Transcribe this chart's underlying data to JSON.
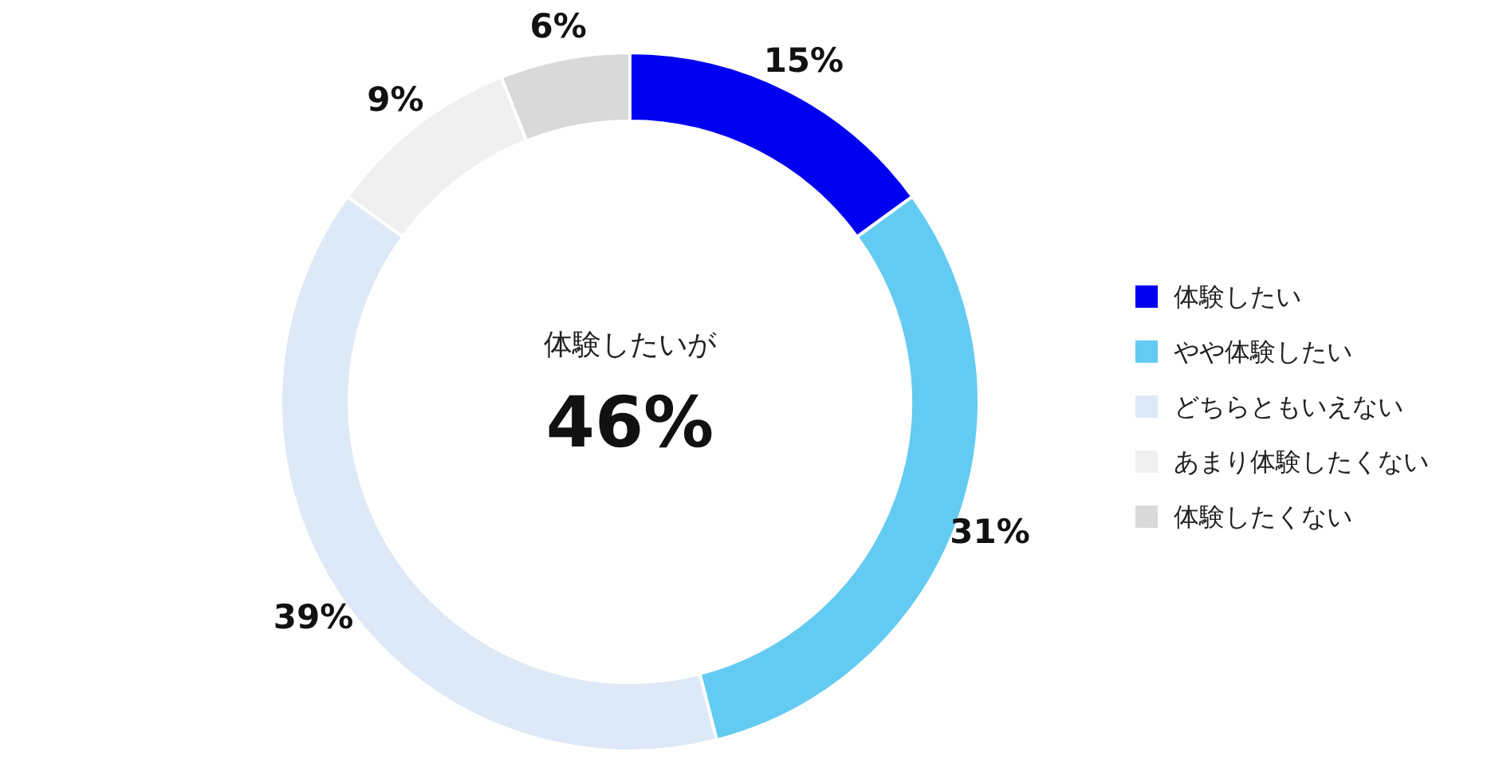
{
  "chart_data": {
    "type": "donut",
    "categories": [
      "体験したい",
      "やや体験したい",
      "どちらともいえない",
      "あまり体験したくない",
      "体験したくない"
    ],
    "values": [
      15,
      31,
      39,
      9,
      6
    ],
    "colors": [
      "#0000f0",
      "#63cbf2",
      "#dde9f6",
      "#f0f0f0",
      "#d9d9d9"
    ],
    "value_labels": [
      "15%",
      "31%",
      "39%",
      "9%",
      "6%"
    ],
    "annotations": [
      "体験したいが",
      "46%"
    ],
    "legend": "right"
  }
}
